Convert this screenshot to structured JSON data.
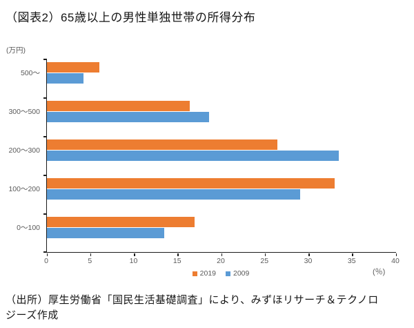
{
  "title": "（図表2）65歳以上の男性単独世帯の所得分布",
  "source": "（出所）厚生労働省「国民生活基礎調査」により、みずほリサーチ＆テクノロジーズ作成",
  "chart_data": {
    "type": "bar",
    "orientation": "horizontal",
    "title": "（図表2）65歳以上の男性単独世帯の所得分布",
    "unit_label": "(万円)",
    "percent_label": "(％)",
    "categories": [
      "500～",
      "300～500",
      "200～300",
      "100～200",
      "0～100"
    ],
    "series": [
      {
        "name": "2019",
        "color": "#ED7D31",
        "values": [
          6.0,
          16.4,
          26.4,
          33.0,
          16.9
        ]
      },
      {
        "name": "2009",
        "color": "#5B9BD5",
        "values": [
          4.2,
          18.6,
          33.4,
          29.0,
          13.4
        ]
      }
    ],
    "xlim": [
      0,
      40
    ],
    "x_ticks": [
      0,
      5,
      10,
      15,
      20,
      25,
      30,
      35,
      40
    ],
    "xlabel": "(％)",
    "ylabel": "(万円)",
    "grid": false,
    "legend_position": "bottom-center"
  }
}
